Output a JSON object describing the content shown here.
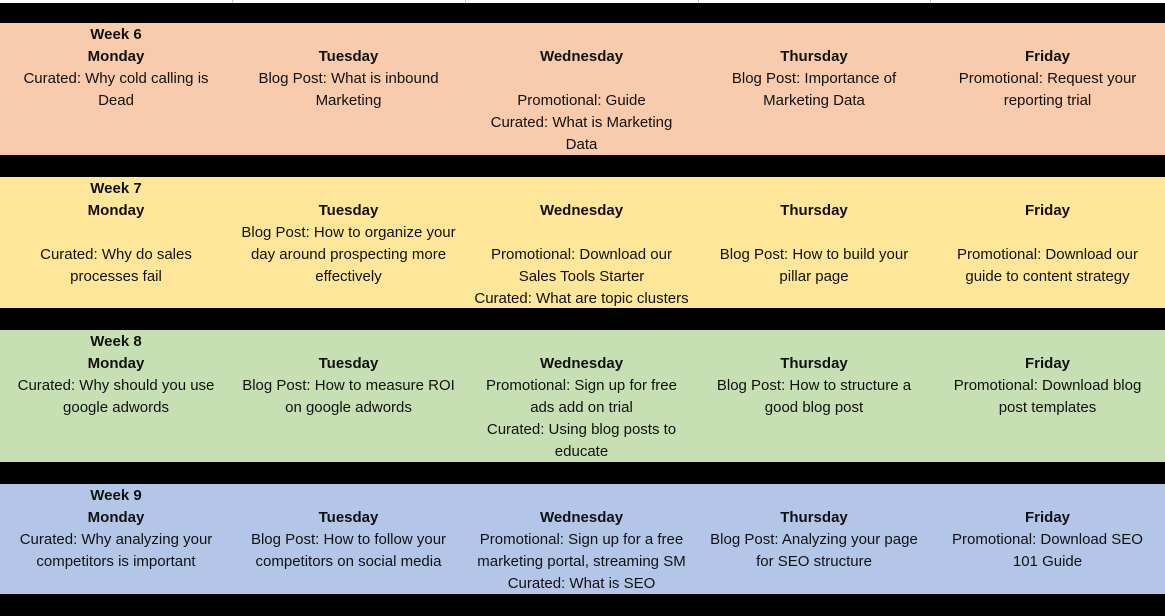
{
  "colors": {
    "week6": "#F8CBAD",
    "week7": "#FFE699",
    "week8": "#C6E0B4",
    "week9": "#B4C6E7",
    "separator": "#000000"
  },
  "weeks": [
    {
      "label": "Week 6",
      "days": [
        {
          "day": "Monday",
          "lines": [
            "Curated: Why cold calling is",
            "Dead"
          ]
        },
        {
          "day": "Tuesday",
          "lines": [
            "Blog Post: What is inbound",
            "Marketing"
          ]
        },
        {
          "day": "Wednesday",
          "lines": [
            "Promotional: Guide",
            "Curated: What is Marketing",
            "Data"
          ]
        },
        {
          "day": "Thursday",
          "lines": [
            "Blog Post: Importance of",
            "Marketing Data"
          ]
        },
        {
          "day": "Friday",
          "lines": [
            "Promotional: Request your",
            "reporting trial"
          ]
        }
      ]
    },
    {
      "label": "Week 7",
      "days": [
        {
          "day": "Monday",
          "lines": [
            "Curated: Why do sales",
            "processes fail"
          ]
        },
        {
          "day": "Tuesday",
          "lines": [
            "Blog Post: How to organize your",
            "day around prospecting more",
            "effectively"
          ]
        },
        {
          "day": "Wednesday",
          "lines": [
            "Promotional: Download our",
            "Sales Tools Starter",
            "Curated: What are topic clusters"
          ]
        },
        {
          "day": "Thursday",
          "lines": [
            "Blog Post: How to build your",
            "pillar page"
          ]
        },
        {
          "day": "Friday",
          "lines": [
            "Promotional: Download our",
            "guide to content strategy"
          ]
        }
      ]
    },
    {
      "label": "Week 8",
      "days": [
        {
          "day": "Monday",
          "lines": [
            "Curated: Why should you use",
            "google adwords"
          ]
        },
        {
          "day": "Tuesday",
          "lines": [
            "Blog Post: How to measure ROI",
            "on google adwords"
          ]
        },
        {
          "day": "Wednesday",
          "lines": [
            "Promotional: Sign up for free",
            "ads add on trial",
            "Curated: Using blog posts to",
            "educate"
          ]
        },
        {
          "day": "Thursday",
          "lines": [
            "Blog Post: How to structure a",
            "good blog post"
          ]
        },
        {
          "day": "Friday",
          "lines": [
            "Promotional: Download blog",
            "post templates"
          ]
        }
      ]
    },
    {
      "label": "Week 9",
      "days": [
        {
          "day": "Monday",
          "lines": [
            "Curated: Why analyzing your",
            "competitors is important"
          ]
        },
        {
          "day": "Tuesday",
          "lines": [
            "Blog Post: How to follow your",
            "competitors  on social media"
          ]
        },
        {
          "day": "Wednesday",
          "lines": [
            "Promotional: Sign up for a free",
            "marketing portal, streaming SM",
            "Curated: What is SEO"
          ]
        },
        {
          "day": "Thursday",
          "lines": [
            "Blog Post: Analyzing your page",
            "for SEO structure"
          ]
        },
        {
          "day": "Friday",
          "lines": [
            "Promotional: Download SEO",
            "101 Guide"
          ]
        }
      ]
    }
  ]
}
